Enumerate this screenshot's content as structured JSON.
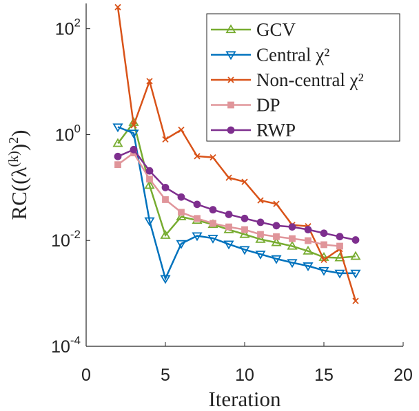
{
  "chart_data": {
    "type": "line",
    "xlabel": "Iteration",
    "ylabel": [
      {
        "text": "RC((λ"
      },
      {
        "text": "(k)",
        "sup": true
      },
      {
        "text": ")"
      },
      {
        "text": "2",
        "sup": true
      },
      {
        "text": ")"
      }
    ],
    "x": [
      2,
      3,
      4,
      5,
      6,
      7,
      8,
      9,
      10,
      11,
      12,
      13,
      14,
      15,
      16,
      17
    ],
    "series": [
      {
        "name": "GCV",
        "color": "#77ac30",
        "marker": "triangle-up",
        "marker_fill": false,
        "values": [
          0.68,
          1.7,
          0.11,
          0.0125,
          0.028,
          0.024,
          0.02,
          0.016,
          0.013,
          0.0105,
          0.0091,
          0.0078,
          0.0063,
          0.0048,
          0.0047,
          0.005
        ]
      },
      {
        "name": "Central χ²",
        "color": "#0072bd",
        "marker": "triangle-down",
        "marker_fill": false,
        "values": [
          1.39,
          1.06,
          0.0234,
          0.0019,
          0.0087,
          0.0122,
          0.011,
          0.0085,
          0.0067,
          0.0055,
          0.0045,
          0.0038,
          0.0033,
          0.0027,
          0.0024,
          0.0024
        ]
      },
      {
        "name": "Non-central χ²",
        "color": "#d95319",
        "marker": "x",
        "marker_fill": false,
        "values": [
          255,
          1.5,
          10.2,
          0.81,
          1.23,
          0.39,
          0.37,
          0.153,
          0.128,
          0.057,
          0.049,
          0.0196,
          0.0185,
          0.0043,
          0.0069,
          0.00072
        ]
      },
      {
        "name": "DP",
        "color": "#e0959a",
        "marker": "square",
        "marker_fill": true,
        "values": [
          0.27,
          0.45,
          0.144,
          0.059,
          0.034,
          0.026,
          0.021,
          0.018,
          0.016,
          0.013,
          0.0118,
          0.0108,
          0.0099,
          0.0083,
          0.0078,
          null
        ]
      },
      {
        "name": "RWP",
        "color": "#7e2f8e",
        "marker": "circle",
        "marker_fill": true,
        "values": [
          0.385,
          0.52,
          0.206,
          0.1,
          0.066,
          0.048,
          0.038,
          0.031,
          0.026,
          0.022,
          0.019,
          0.018,
          0.016,
          0.0137,
          0.0118,
          0.0102
        ]
      }
    ],
    "xlim": [
      0,
      20
    ],
    "xticks": [
      0,
      5,
      10,
      15,
      20
    ],
    "ylim": [
      0.0001,
      300
    ],
    "log_y": true,
    "yticks": [
      {
        "value": 0.0001,
        "label": "10",
        "exponent": "-4"
      },
      {
        "value": 0.01,
        "label": "10",
        "exponent": "-2"
      },
      {
        "value": 1,
        "label": "10",
        "exponent": "0"
      },
      {
        "value": 100,
        "label": "10",
        "exponent": "2"
      }
    ],
    "legend": "upper right"
  }
}
